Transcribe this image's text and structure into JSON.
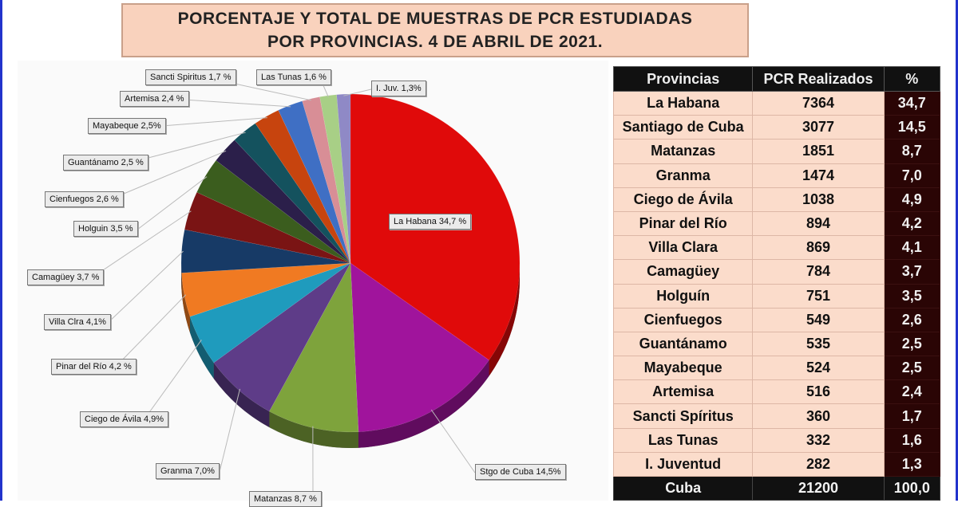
{
  "title_line1": "PORCENTAJE Y TOTAL DE MUESTRAS DE PCR ESTUDIADAS",
  "title_line2": "POR PROVINCIAS. 4 DE ABRIL DE 2021.",
  "table": {
    "headers": [
      "Provincias",
      "PCR Realizados",
      "%"
    ],
    "rows": [
      [
        "La Habana",
        "7364",
        "34,7"
      ],
      [
        "Santiago de Cuba",
        "3077",
        "14,5"
      ],
      [
        "Matanzas",
        "1851",
        "8,7"
      ],
      [
        "Granma",
        "1474",
        "7,0"
      ],
      [
        "Ciego de Ávila",
        "1038",
        "4,9"
      ],
      [
        "Pinar del Río",
        "894",
        "4,2"
      ],
      [
        "Villa Clara",
        "869",
        "4,1"
      ],
      [
        "Camagüey",
        "784",
        "3,7"
      ],
      [
        "Holguín",
        "751",
        "3,5"
      ],
      [
        "Cienfuegos",
        "549",
        "2,6"
      ],
      [
        "Guantánamo",
        "535",
        "2,5"
      ],
      [
        "Mayabeque",
        "524",
        "2,5"
      ],
      [
        "Artemisa",
        "516",
        "2,4"
      ],
      [
        "Sancti Spíritus",
        "360",
        "1,7"
      ],
      [
        "Las Tunas",
        "332",
        "1,6"
      ],
      [
        "I. Juventud",
        "282",
        "1,3"
      ]
    ],
    "total": [
      "Cuba",
      "21200",
      "100,0"
    ]
  },
  "chart_data": {
    "type": "pie",
    "title": "",
    "slices": [
      {
        "label": "La Habana 34,7 %",
        "value": 34.7,
        "color": "#e00a0a"
      },
      {
        "label": "Stgo de Cuba 14,5%",
        "value": 14.5,
        "color": "#a0149c"
      },
      {
        "label": "Matanzas 8,7 %",
        "value": 8.7,
        "color": "#7ea33c"
      },
      {
        "label": "Granma 7,0%",
        "value": 7.0,
        "color": "#5e3c88"
      },
      {
        "label": "Ciego de Ávila 4,9%",
        "value": 4.9,
        "color": "#1f9bbd"
      },
      {
        "label": "Pinar del Río 4,2 %",
        "value": 4.2,
        "color": "#f07a22"
      },
      {
        "label": "Villa Clra 4,1%",
        "value": 4.1,
        "color": "#173a66"
      },
      {
        "label": "Camagüey 3,7 %",
        "value": 3.7,
        "color": "#7a1414"
      },
      {
        "label": "Holguin 3,5 %",
        "value": 3.5,
        "color": "#3b5d1e"
      },
      {
        "label": "Cienfuegos 2,6 %",
        "value": 2.6,
        "color": "#2b1f4a"
      },
      {
        "label": "Guantánamo 2,5 %",
        "value": 2.5,
        "color": "#14525e"
      },
      {
        "label": "Mayabeque 2,5%",
        "value": 2.5,
        "color": "#c7440e"
      },
      {
        "label": "Artemisa 2,4 %",
        "value": 2.4,
        "color": "#3f6fc4"
      },
      {
        "label": "Sancti Spiritus 1,7 %",
        "value": 1.7,
        "color": "#d88e96"
      },
      {
        "label": "Las Tunas 1,6 %",
        "value": 1.6,
        "color": "#a8cf86"
      },
      {
        "label": "I. Juv. 1,3%",
        "value": 1.3,
        "color": "#8f89c6"
      }
    ]
  }
}
